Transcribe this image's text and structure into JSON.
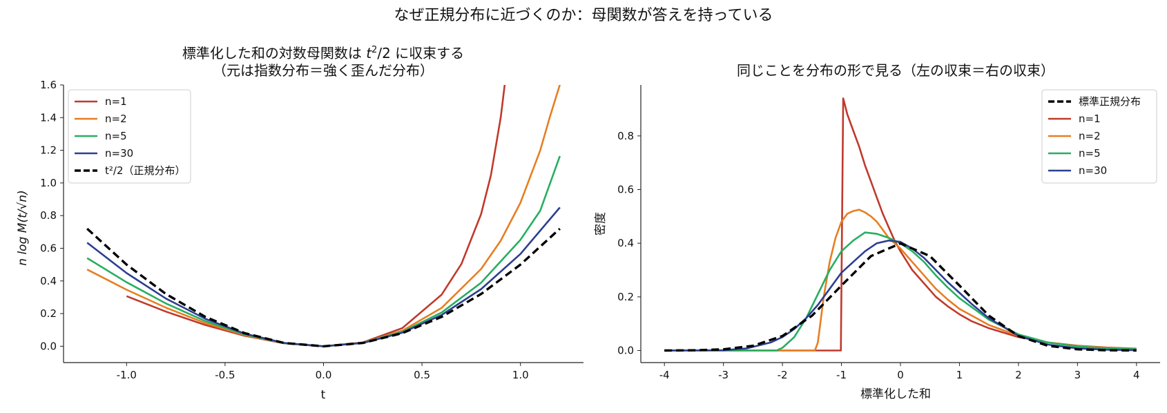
{
  "suptitle": "なぜ正規分布に近づくのか：母関数が答えを持っている",
  "colors": {
    "n1": "#c0392b",
    "n2": "#e67e22",
    "n5": "#27ae60",
    "n30": "#2c3e91",
    "normal": "#000000"
  },
  "chart_data": [
    {
      "type": "line",
      "title_line1": "標準化した和の対数母関数は t²/2 に収束する",
      "title_line2": "（元は指数分布＝強く歪んだ分布）",
      "xlabel": "t",
      "ylabel": "n log M(t/√n)",
      "xlim": [
        -1.32,
        1.32
      ],
      "ylim": [
        -0.1,
        1.6
      ],
      "xticks": [
        -1.0,
        -0.5,
        0.0,
        0.5,
        1.0
      ],
      "xtick_labels": [
        "-1.0",
        "-0.5",
        "0.0",
        "0.5",
        "1.0"
      ],
      "yticks": [
        0.0,
        0.2,
        0.4,
        0.6,
        0.8,
        1.0,
        1.2,
        1.4,
        1.6
      ],
      "ytick_labels": [
        "0.0",
        "0.2",
        "0.4",
        "0.6",
        "0.8",
        "1.0",
        "1.2",
        "1.4",
        "1.6"
      ],
      "legend_position": "top-left",
      "series": [
        {
          "name": "n=1",
          "color_key": "n1",
          "dash": false,
          "x": [
            -1.0,
            -0.8,
            -0.6,
            -0.4,
            -0.2,
            0.0,
            0.2,
            0.4,
            0.6,
            0.7,
            0.8,
            0.85,
            0.9,
            0.92
          ],
          "y": [
            0.307,
            0.212,
            0.13,
            0.064,
            0.018,
            0.0,
            0.023,
            0.111,
            0.316,
            0.504,
            0.809,
            1.047,
            1.403,
            1.601
          ]
        },
        {
          "name": "n=2",
          "color_key": "n2",
          "dash": false,
          "x": [
            -1.2,
            -1.0,
            -0.8,
            -0.6,
            -0.4,
            -0.2,
            0.0,
            0.2,
            0.4,
            0.6,
            0.8,
            0.9,
            1.0,
            1.1,
            1.15,
            1.2
          ],
          "y": [
            0.47,
            0.346,
            0.236,
            0.142,
            0.068,
            0.019,
            0.0,
            0.021,
            0.095,
            0.235,
            0.473,
            0.647,
            0.879,
            1.199,
            1.407,
            1.602
          ]
        },
        {
          "name": "n=5",
          "color_key": "n5",
          "dash": false,
          "x": [
            -1.2,
            -1.0,
            -0.8,
            -0.6,
            -0.4,
            -0.2,
            0.0,
            0.2,
            0.4,
            0.6,
            0.8,
            1.0,
            1.1,
            1.2
          ],
          "y": [
            0.54,
            0.392,
            0.262,
            0.154,
            0.072,
            0.019,
            0.0,
            0.021,
            0.088,
            0.207,
            0.389,
            0.652,
            0.83,
            1.165
          ]
        },
        {
          "name": "n=30",
          "color_key": "n30",
          "dash": false,
          "x": [
            -1.2,
            -1.0,
            -0.8,
            -0.6,
            -0.4,
            -0.2,
            0.0,
            0.2,
            0.4,
            0.6,
            0.8,
            1.0,
            1.2
          ],
          "y": [
            0.634,
            0.448,
            0.292,
            0.168,
            0.077,
            0.02,
            0.0,
            0.02,
            0.083,
            0.192,
            0.35,
            0.565,
            0.85
          ]
        },
        {
          "name": "t²/2（正規分布）",
          "color_key": "normal",
          "dash": true,
          "x": [
            -1.2,
            -1.0,
            -0.8,
            -0.6,
            -0.4,
            -0.2,
            0.0,
            0.2,
            0.4,
            0.6,
            0.8,
            1.0,
            1.2
          ],
          "y": [
            0.72,
            0.5,
            0.32,
            0.18,
            0.08,
            0.02,
            0.0,
            0.02,
            0.08,
            0.18,
            0.32,
            0.5,
            0.72
          ]
        }
      ]
    },
    {
      "type": "line",
      "title": "同じことを分布の形で見る（左の収束＝右の収束）",
      "xlabel": "標準化した和",
      "ylabel": "密度",
      "xlim": [
        -4.4,
        4.4
      ],
      "ylim": [
        -0.045,
        0.99
      ],
      "xticks": [
        -4,
        -3,
        -2,
        -1,
        0,
        1,
        2,
        3,
        4
      ],
      "xtick_labels": [
        "-4",
        "-3",
        "-2",
        "-1",
        "0",
        "1",
        "2",
        "3",
        "4"
      ],
      "yticks": [
        0.0,
        0.2,
        0.4,
        0.6,
        0.8
      ],
      "ytick_labels": [
        "0.0",
        "0.2",
        "0.4",
        "0.6",
        "0.8"
      ],
      "legend_position": "top-right",
      "series": [
        {
          "name": "標準正規分布",
          "color_key": "normal",
          "dash": true,
          "x": [
            -4,
            -3.5,
            -3,
            -2.5,
            -2,
            -1.5,
            -1,
            -0.5,
            0,
            0.5,
            1,
            1.5,
            2,
            2.5,
            3,
            3.5,
            4
          ],
          "y": [
            0.0001,
            0.0009,
            0.0044,
            0.0175,
            0.054,
            0.1295,
            0.242,
            0.352,
            0.399,
            0.352,
            0.242,
            0.1295,
            0.054,
            0.0175,
            0.0044,
            0.0009,
            0.0001
          ]
        },
        {
          "name": "n=1",
          "color_key": "n1",
          "dash": false,
          "x": [
            -4,
            -1.01,
            -0.97,
            -0.9,
            -0.8,
            -0.7,
            -0.6,
            -0.5,
            -0.4,
            -0.3,
            -0.2,
            -0.1,
            0,
            0.2,
            0.4,
            0.6,
            0.8,
            1.0,
            1.2,
            1.5,
            2.0,
            2.5,
            3.0,
            3.5,
            4.0
          ],
          "y": [
            0,
            0,
            0.94,
            0.88,
            0.82,
            0.76,
            0.69,
            0.63,
            0.57,
            0.51,
            0.46,
            0.41,
            0.37,
            0.3,
            0.25,
            0.2,
            0.165,
            0.135,
            0.11,
            0.083,
            0.05,
            0.03,
            0.018,
            0.011,
            0.007
          ]
        },
        {
          "name": "n=2",
          "color_key": "n2",
          "dash": false,
          "x": [
            -4,
            -1.45,
            -1.4,
            -1.3,
            -1.2,
            -1.1,
            -1.0,
            -0.9,
            -0.8,
            -0.7,
            -0.6,
            -0.5,
            -0.4,
            -0.3,
            -0.2,
            -0.1,
            0,
            0.2,
            0.4,
            0.6,
            0.8,
            1.0,
            1.5,
            2.0,
            2.5,
            3.0,
            3.5,
            4.0
          ],
          "y": [
            0,
            0,
            0.03,
            0.2,
            0.33,
            0.42,
            0.48,
            0.51,
            0.52,
            0.525,
            0.515,
            0.5,
            0.48,
            0.45,
            0.42,
            0.4,
            0.38,
            0.33,
            0.28,
            0.23,
            0.19,
            0.155,
            0.095,
            0.055,
            0.03,
            0.017,
            0.01,
            0.006
          ]
        },
        {
          "name": "n=5",
          "color_key": "n5",
          "dash": false,
          "x": [
            -4,
            -2.1,
            -2.0,
            -1.8,
            -1.6,
            -1.4,
            -1.2,
            -1.0,
            -0.8,
            -0.6,
            -0.4,
            -0.2,
            0,
            0.2,
            0.4,
            0.6,
            0.8,
            1.0,
            1.5,
            2.0,
            2.5,
            3.0,
            3.5,
            4.0
          ],
          "y": [
            0,
            0,
            0.01,
            0.05,
            0.12,
            0.21,
            0.3,
            0.37,
            0.41,
            0.44,
            0.435,
            0.42,
            0.4,
            0.37,
            0.33,
            0.28,
            0.235,
            0.195,
            0.115,
            0.06,
            0.03,
            0.015,
            0.008,
            0.005
          ]
        },
        {
          "name": "n=30",
          "color_key": "n30",
          "dash": false,
          "x": [
            -4,
            -3.0,
            -2.6,
            -2.2,
            -2.0,
            -1.8,
            -1.6,
            -1.4,
            -1.2,
            -1.0,
            -0.8,
            -0.6,
            -0.4,
            -0.2,
            0,
            0.2,
            0.4,
            0.6,
            0.8,
            1.0,
            1.2,
            1.5,
            2.0,
            2.5,
            3.0,
            3.5,
            4.0
          ],
          "y": [
            0,
            0.001,
            0.008,
            0.03,
            0.05,
            0.08,
            0.12,
            0.17,
            0.23,
            0.29,
            0.33,
            0.37,
            0.4,
            0.41,
            0.405,
            0.38,
            0.345,
            0.3,
            0.255,
            0.215,
            0.175,
            0.12,
            0.055,
            0.022,
            0.008,
            0.003,
            0.001
          ]
        }
      ]
    }
  ]
}
